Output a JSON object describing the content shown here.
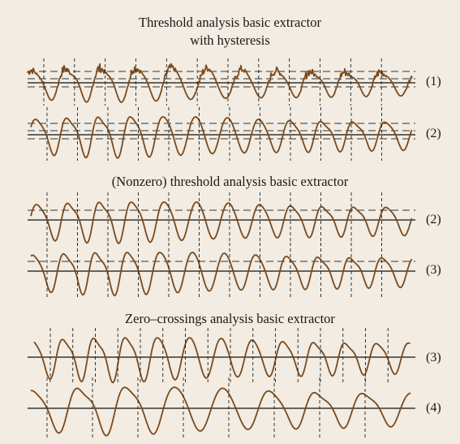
{
  "sections": [
    {
      "title_lines": [
        "Threshold analysis basic extractor",
        "with hysteresis"
      ],
      "traces": [
        {
          "label": "(1)",
          "signal": "noisy",
          "hysteresis": true,
          "markers": 12
        },
        {
          "label": "(2)",
          "signal": "smooth",
          "hysteresis": true,
          "markers": 12
        }
      ]
    },
    {
      "title_lines": [
        "(Nonzero) threshold analysis basic extractor"
      ],
      "traces": [
        {
          "label": "(2)",
          "signal": "smooth",
          "hysteresis": false,
          "upper_threshold": true,
          "markers": 12
        },
        {
          "label": "(3)",
          "signal": "smooth",
          "hysteresis": false,
          "upper_threshold": true,
          "markers": 12
        }
      ]
    },
    {
      "title_lines": [
        "Zero–crossings analysis basic extractor"
      ],
      "traces": [
        {
          "label": "(3)",
          "signal": "smooth",
          "hysteresis": false,
          "upper_threshold": false,
          "markers": 16
        },
        {
          "label": "(4)",
          "signal": "smooth",
          "hysteresis": false,
          "upper_threshold": false,
          "markers": 8
        }
      ]
    }
  ],
  "colors": {
    "background": "#f2ece2",
    "waveform": "#7a4a1e",
    "baseline": "#111111",
    "threshold_dashed": "#333333",
    "marker": "#222222"
  }
}
